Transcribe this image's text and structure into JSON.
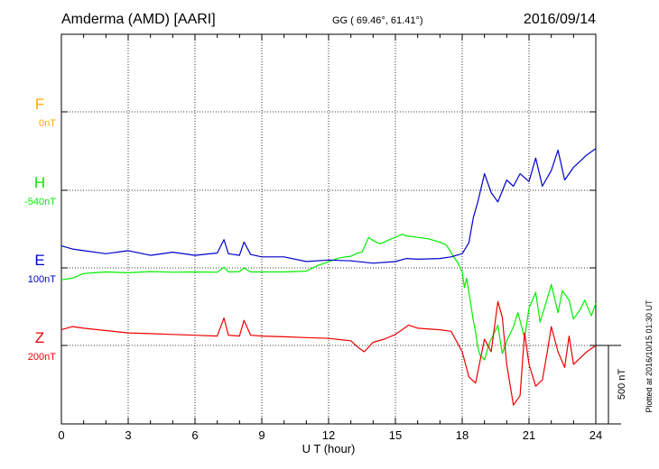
{
  "header": {
    "station": "Amderma (AMD)  [AARI]",
    "coords": "GG ( 69.46°,  61.41°)",
    "date": "2016/09/14"
  },
  "footer": {
    "plotted": "Plotted at 2016/10/15 01:30 UT"
  },
  "chart_data": {
    "type": "line",
    "xlabel": "U T (hour)",
    "xlim": [
      0,
      24
    ],
    "xticks": [
      0,
      3,
      6,
      9,
      12,
      15,
      18,
      21,
      24
    ],
    "grid": true,
    "scale_bar": {
      "label": "500 nT",
      "value": 500
    },
    "series": [
      {
        "name": "F",
        "baseline_label": "0nT",
        "color": "#ffaa00",
        "x": [],
        "y": []
      },
      {
        "name": "H",
        "baseline_label": "-540nT",
        "color": "#00ee00",
        "x": [
          0,
          0.5,
          1,
          1.5,
          2,
          3,
          4,
          5,
          6,
          7,
          7.3,
          7.5,
          8,
          8.2,
          8.5,
          9,
          10,
          11,
          11.5,
          12,
          12.5,
          13,
          13.3,
          13.5,
          13.8,
          14,
          14.3,
          14.5,
          14.8,
          15,
          15.3,
          15.5,
          16,
          16.5,
          17,
          17.3,
          17.6,
          17.8,
          18,
          18.1,
          18.2,
          18.4,
          18.5,
          18.6,
          18.7,
          18.8,
          19,
          19.2,
          19.4,
          19.6,
          19.8,
          20,
          20.3,
          20.5,
          20.8,
          21,
          21.3,
          21.5,
          21.8,
          22,
          22.3,
          22.5,
          22.8,
          23,
          23.3,
          23.5,
          23.8,
          24
        ],
        "y": [
          -570,
          -560,
          -530,
          -525,
          -520,
          -525,
          -518,
          -522,
          -520,
          -522,
          -490,
          -520,
          -518,
          -495,
          -520,
          -520,
          -520,
          -515,
          -480,
          -455,
          -430,
          -420,
          -400,
          -395,
          -300,
          -320,
          -340,
          -330,
          -310,
          -300,
          -280,
          -290,
          -300,
          -310,
          -330,
          -350,
          -420,
          -460,
          -520,
          -620,
          -560,
          -740,
          -830,
          -900,
          -1000,
          -1050,
          -1080,
          -980,
          -920,
          -860,
          -1040,
          -960,
          -870,
          -780,
          -940,
          -750,
          -650,
          -840,
          -700,
          -600,
          -780,
          -640,
          -700,
          -820,
          -760,
          -700,
          -800,
          -720
        ]
      },
      {
        "name": "E",
        "baseline_label": "100nT",
        "color": "#0000cc",
        "x": [
          0,
          0.5,
          1,
          2,
          3,
          4,
          5,
          6,
          7,
          7.3,
          7.5,
          8,
          8.2,
          8.5,
          9,
          10,
          11,
          12,
          13,
          14,
          15,
          15.5,
          16,
          17,
          17.5,
          18,
          18.3,
          18.5,
          18.7,
          19,
          19.3,
          19.6,
          20,
          20.3,
          20.6,
          21,
          21.3,
          21.6,
          22,
          22.3,
          22.6,
          23,
          23.3,
          23.6,
          24
        ],
        "y": [
          140,
          120,
          110,
          90,
          110,
          80,
          100,
          80,
          95,
          180,
          90,
          80,
          165,
          85,
          70,
          70,
          40,
          50,
          45,
          30,
          40,
          60,
          55,
          60,
          70,
          90,
          160,
          320,
          420,
          600,
          480,
          420,
          560,
          520,
          600,
          550,
          700,
          520,
          620,
          750,
          560,
          640,
          680,
          720,
          760
        ]
      },
      {
        "name": "Z",
        "baseline_label": "200nT",
        "color": "#ee0000",
        "x": [
          0,
          0.5,
          1,
          2,
          3,
          4,
          5,
          6,
          7,
          7.3,
          7.5,
          8,
          8.2,
          8.5,
          9,
          10,
          11,
          12,
          13,
          13.3,
          13.6,
          14,
          14.5,
          15,
          15.3,
          15.6,
          16,
          17,
          17.5,
          18,
          18.3,
          18.6,
          19,
          19.3,
          19.6,
          19.8,
          20,
          20.3,
          20.6,
          20.8,
          21,
          21.3,
          21.6,
          21.8,
          22,
          22.3,
          22.6,
          22.8,
          23,
          23.3,
          23.6,
          24
        ],
        "y": [
          100,
          120,
          110,
          95,
          80,
          75,
          70,
          65,
          60,
          175,
          65,
          60,
          160,
          65,
          60,
          55,
          50,
          45,
          30,
          -10,
          -40,
          20,
          40,
          70,
          100,
          130,
          110,
          100,
          90,
          -40,
          -200,
          -240,
          40,
          -40,
          280,
          180,
          -120,
          -380,
          -320,
          80,
          -120,
          -260,
          -220,
          -60,
          120,
          -40,
          -140,
          60,
          -120,
          -80,
          -40,
          0
        ]
      }
    ]
  }
}
